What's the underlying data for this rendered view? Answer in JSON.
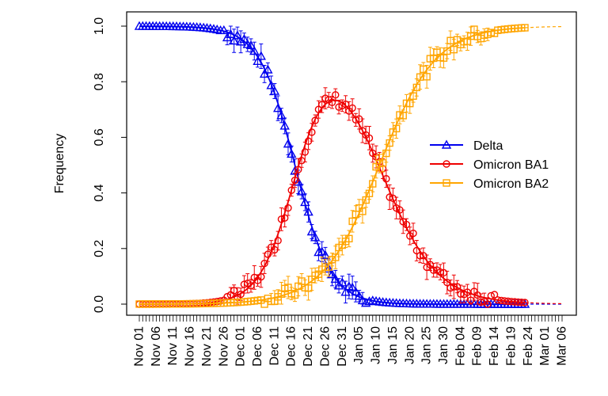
{
  "chart_data": {
    "type": "line",
    "title": "",
    "xlabel": "",
    "ylabel": "Frequency",
    "ylim": [
      0,
      1.0
    ],
    "y_ticks": [
      "0.0",
      "0.2",
      "0.4",
      "0.6",
      "0.8",
      "1.0"
    ],
    "x_tick_labels": [
      "Nov 01",
      "Nov 06",
      "Nov 11",
      "Nov 16",
      "Nov 21",
      "Nov 26",
      "Dec 01",
      "Dec 06",
      "Dec 11",
      "Dec 16",
      "Dec 21",
      "Dec 26",
      "Dec 31",
      "Jan 05",
      "Jan 10",
      "Jan 15",
      "Jan 20",
      "Jan 25",
      "Jan 30",
      "Feb 04",
      "Feb 09",
      "Feb 14",
      "Feb 19",
      "Feb 24",
      "Mar 01",
      "Mar 06"
    ],
    "day_range": [
      0,
      125
    ],
    "observed_until_day": 114,
    "legend_position": "center-right",
    "series": [
      {
        "name": "Delta",
        "color": "#0000ee",
        "marker": "triangle",
        "model": "logistic-down",
        "midpoint_day": 46,
        "rate": 0.19
      },
      {
        "name": "Omicron BA1",
        "color": "#ee0000",
        "marker": "circle",
        "model": "remainder",
        "peak_approx": 0.74
      },
      {
        "name": "Omicron BA2",
        "color": "#ffa500",
        "marker": "square",
        "model": "logistic-up",
        "midpoint_day": 71,
        "rate": 0.12
      }
    ]
  }
}
